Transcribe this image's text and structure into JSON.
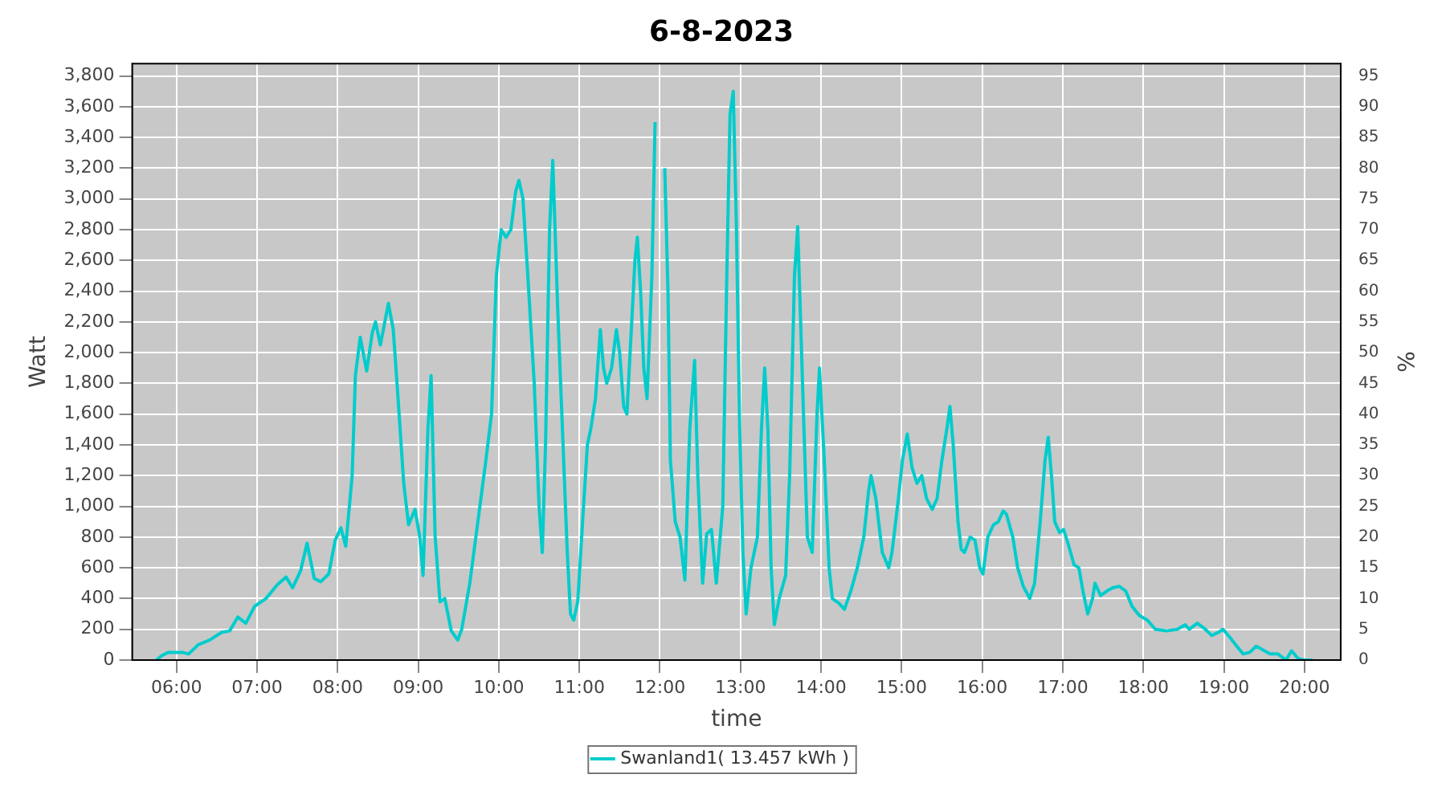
{
  "chart_data": {
    "type": "line",
    "title": "6-8-2023",
    "xlabel": "time",
    "ylabel": "Watt",
    "y2label": "%",
    "xlim": [
      5.45,
      20.45
    ],
    "xticks": [
      {
        "value": 6,
        "label": "06:00"
      },
      {
        "value": 7,
        "label": "07:00"
      },
      {
        "value": 8,
        "label": "08:00"
      },
      {
        "value": 9,
        "label": "09:00"
      },
      {
        "value": 10,
        "label": "10:00"
      },
      {
        "value": 11,
        "label": "11:00"
      },
      {
        "value": 12,
        "label": "12:00"
      },
      {
        "value": 13,
        "label": "13:00"
      },
      {
        "value": 14,
        "label": "14:00"
      },
      {
        "value": 15,
        "label": "15:00"
      },
      {
        "value": 16,
        "label": "16:00"
      },
      {
        "value": 17,
        "label": "17:00"
      },
      {
        "value": 18,
        "label": "18:00"
      },
      {
        "value": 19,
        "label": "19:00"
      },
      {
        "value": 20,
        "label": "20:00"
      }
    ],
    "ylim": [
      0,
      3880
    ],
    "yticks": [
      0,
      200,
      400,
      600,
      800,
      {
        "value": 1000,
        "label": "1,000"
      },
      {
        "value": 1200,
        "label": "1,200"
      },
      {
        "value": 1400,
        "label": "1,400"
      },
      {
        "value": 1600,
        "label": "1,600"
      },
      {
        "value": 1800,
        "label": "1,800"
      },
      {
        "value": 2000,
        "label": "2,000"
      },
      {
        "value": 2200,
        "label": "2,200"
      },
      {
        "value": 2400,
        "label": "2,400"
      },
      {
        "value": 2600,
        "label": "2,600"
      },
      {
        "value": 2800,
        "label": "2,800"
      },
      {
        "value": 3000,
        "label": "3,000"
      },
      {
        "value": 3200,
        "label": "3,200"
      },
      {
        "value": 3400,
        "label": "3,400"
      },
      {
        "value": 3600,
        "label": "3,600"
      },
      {
        "value": 3800,
        "label": "3,800"
      }
    ],
    "y2lim": [
      0,
      97
    ],
    "y2ticks": [
      0,
      5,
      10,
      15,
      20,
      25,
      30,
      35,
      40,
      45,
      50,
      55,
      60,
      65,
      70,
      75,
      80,
      85,
      90,
      95
    ],
    "grid": true,
    "legend": "bottom",
    "marker": "none",
    "line_style": "solid",
    "series": [
      {
        "name": "Swanland1( 13.457 kWh )",
        "color": "#00cccc",
        "x": [
          5.75,
          5.82,
          5.9,
          6.07,
          6.15,
          6.27,
          6.41,
          6.56,
          6.66,
          6.76,
          6.86,
          6.97,
          7.11,
          7.25,
          7.36,
          7.44,
          7.54,
          7.62,
          7.71,
          7.79,
          7.89,
          7.97,
          8.04,
          8.1,
          8.18,
          8.22,
          8.28,
          8.36,
          8.43,
          8.47,
          8.53,
          8.63,
          8.69,
          8.75,
          8.82,
          8.88,
          8.96,
          9.02,
          9.06,
          9.12,
          9.16,
          9.21,
          9.27,
          9.33,
          9.41,
          9.49,
          9.54,
          9.64,
          9.74,
          9.84,
          9.91,
          9.97,
          10.03,
          10.09,
          10.15,
          10.21,
          10.25,
          10.3,
          10.36,
          10.44,
          10.5,
          10.54,
          10.58,
          10.63,
          10.67,
          10.73,
          10.79,
          10.85,
          10.89,
          10.93,
          10.98,
          11.04,
          11.1,
          11.14,
          11.2,
          11.26,
          11.3,
          11.34,
          11.4,
          11.46,
          11.5,
          11.55,
          11.59,
          11.65,
          11.69,
          11.72,
          11.76,
          11.8,
          11.84,
          11.9,
          11.94,
          11.98,
          12.02,
          12.06,
          12.1,
          12.13,
          12.19,
          12.25,
          12.31,
          12.37,
          12.43,
          12.47,
          12.53,
          12.58,
          12.64,
          12.7,
          12.78,
          12.83,
          12.87,
          12.91,
          12.95,
          12.99,
          13.03,
          13.07,
          13.13,
          13.21,
          13.26,
          13.3,
          13.34,
          13.38,
          13.42,
          13.48,
          13.56,
          13.61,
          13.67,
          13.71,
          13.77,
          13.83,
          13.89,
          13.95,
          13.98,
          14.04,
          14.1,
          14.14,
          14.22,
          14.29,
          14.37,
          14.45,
          14.53,
          14.59,
          14.62,
          14.68,
          14.76,
          14.84,
          14.88,
          14.96,
          15.01,
          15.07,
          15.13,
          15.19,
          15.25,
          15.31,
          15.38,
          15.44,
          15.5,
          15.56,
          15.6,
          15.64,
          15.7,
          15.74,
          15.78,
          15.85,
          15.91,
          15.97,
          16.01,
          16.07,
          16.14,
          16.2,
          16.26,
          16.3,
          16.38,
          16.44,
          16.51,
          16.59,
          16.65,
          16.72,
          16.78,
          16.82,
          16.86,
          16.9,
          16.96,
          17.01,
          17.07,
          17.14,
          17.2,
          17.25,
          17.31,
          17.37,
          17.4,
          17.47,
          17.55,
          17.62,
          17.7,
          17.78,
          17.86,
          17.95,
          18.05,
          18.15,
          18.29,
          18.42,
          18.52,
          18.57,
          18.67,
          18.77,
          18.85,
          18.93,
          18.99,
          19.07,
          19.16,
          19.24,
          19.32,
          19.4,
          19.47,
          19.57,
          19.67,
          19.77,
          19.84,
          19.92,
          20.0,
          20.1
        ],
        "values": [
          0,
          30,
          50,
          50,
          40,
          100,
          130,
          180,
          190,
          280,
          240,
          350,
          400,
          490,
          540,
          470,
          580,
          760,
          530,
          510,
          560,
          780,
          860,
          740,
          1200,
          1850,
          2100,
          1880,
          2130,
          2200,
          2050,
          2320,
          2150,
          1700,
          1150,
          880,
          980,
          800,
          550,
          1500,
          1850,
          800,
          380,
          400,
          190,
          130,
          200,
          500,
          900,
          1300,
          1600,
          2500,
          2800,
          2750,
          2800,
          3050,
          3120,
          3000,
          2500,
          1800,
          1000,
          700,
          1400,
          2800,
          3250,
          2300,
          1500,
          700,
          300,
          260,
          380,
          900,
          1400,
          1500,
          1700,
          2150,
          1900,
          1800,
          1900,
          2150,
          2000,
          1650,
          1600,
          2200,
          2600,
          2750,
          2400,
          1900,
          1700,
          2500,
          3500,
          null,
          null,
          3200,
          2400,
          1300,
          900,
          800,
          520,
          1500,
          1950,
          1200,
          500,
          820,
          850,
          500,
          1000,
          2500,
          3550,
          3700,
          2800,
          1500,
          700,
          300,
          600,
          800,
          1500,
          1900,
          1500,
          600,
          230,
          400,
          550,
          1200,
          2500,
          2820,
          1800,
          800,
          700,
          1600,
          1900,
          1300,
          600,
          400,
          370,
          330,
          450,
          600,
          800,
          1100,
          1200,
          1050,
          700,
          600,
          700,
          1050,
          1300,
          1470,
          1250,
          1150,
          1200,
          1050,
          980,
          1050,
          1300,
          1500,
          1650,
          1400,
          900,
          720,
          700,
          800,
          780,
          600,
          560,
          800,
          880,
          900,
          970,
          950,
          800,
          600,
          480,
          400,
          500,
          900,
          1300,
          1450,
          1200,
          900,
          830,
          850,
          750,
          620,
          600,
          450,
          300,
          400,
          500,
          420,
          450,
          470,
          480,
          450,
          350,
          290,
          260,
          200,
          190,
          200,
          230,
          200,
          240,
          200,
          160,
          180,
          200,
          150,
          90,
          40,
          50,
          90,
          70,
          40,
          40,
          0,
          60,
          10,
          0,
          0
        ]
      }
    ]
  }
}
